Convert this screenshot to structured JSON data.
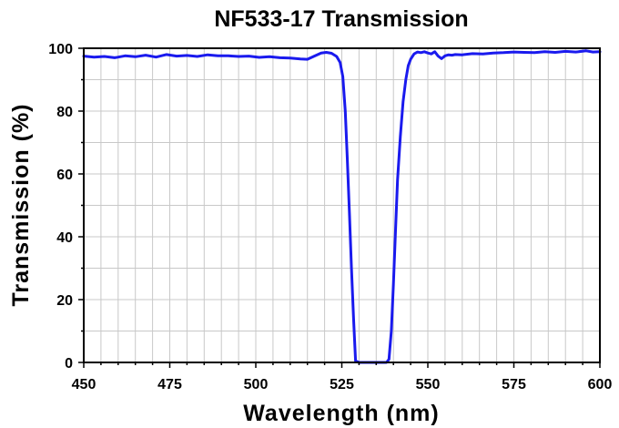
{
  "chart_data": {
    "type": "line",
    "title": "NF533-17 Transmission",
    "xlabel": "Wavelength (nm)",
    "ylabel": "Transmission (%)",
    "xlim": [
      450,
      600
    ],
    "ylim": [
      0,
      100
    ],
    "xticks": [
      "450",
      "475",
      "500",
      "525",
      "550",
      "575",
      "600"
    ],
    "yticks": [
      "0",
      "20",
      "40",
      "60",
      "80",
      "100"
    ],
    "grid": true,
    "series": [
      {
        "color": "#1a1aee",
        "x": [
          450,
          453,
          456,
          459,
          462,
          465,
          468,
          471,
          474,
          477,
          480,
          483,
          486,
          489,
          492,
          495,
          498,
          501,
          504,
          507,
          510,
          513,
          515,
          517,
          519,
          520.5,
          522,
          523.5,
          524.5,
          525.3,
          526,
          526.6,
          527.2,
          527.8,
          528.4,
          529,
          530,
          532,
          534,
          536,
          538,
          538.7,
          539.4,
          540,
          540.6,
          541.2,
          542,
          542.8,
          543.6,
          544.3,
          545,
          546,
          547,
          548,
          549,
          550,
          551,
          552,
          553,
          554,
          555,
          556,
          557,
          558,
          560,
          563,
          566,
          569,
          572,
          575,
          578,
          581,
          584,
          587,
          590,
          593,
          596,
          598,
          600
        ],
        "y": [
          97.5,
          97.2,
          97.4,
          97.0,
          97.6,
          97.3,
          97.8,
          97.2,
          98.0,
          97.5,
          97.7,
          97.4,
          97.9,
          97.6,
          97.6,
          97.4,
          97.5,
          97.1,
          97.3,
          97.0,
          96.9,
          96.6,
          96.5,
          97.5,
          98.5,
          98.7,
          98.4,
          97.4,
          95.5,
          91.0,
          80.0,
          65.0,
          48.0,
          30.0,
          14.0,
          0.5,
          0.0,
          0.0,
          0.0,
          0.0,
          0.0,
          1.0,
          10.0,
          25.0,
          42.0,
          58.0,
          72.0,
          83.0,
          90.0,
          94.5,
          96.5,
          98.2,
          98.8,
          98.6,
          98.9,
          98.5,
          98.2,
          98.9,
          97.5,
          96.7,
          97.6,
          97.9,
          97.8,
          98.0,
          97.9,
          98.3,
          98.2,
          98.5,
          98.6,
          98.8,
          98.7,
          98.6,
          98.9,
          98.7,
          99.0,
          98.8,
          99.2,
          98.8,
          98.9
        ]
      }
    ]
  }
}
